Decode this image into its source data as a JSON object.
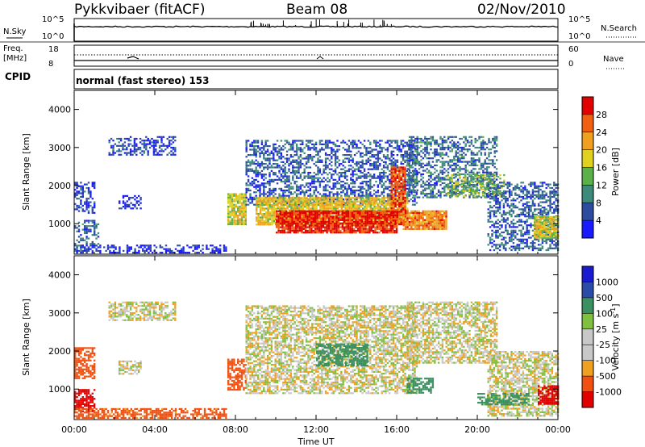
{
  "header": {
    "radar": "Pykkvibaer (fitACF)",
    "beam": "Beam 08",
    "date": "02/Nov/2010"
  },
  "colors": {
    "power_scale": [
      "#1a1aff",
      "#2d4ca0",
      "#3d8a7a",
      "#5bb04a",
      "#e0d020",
      "#f0a020",
      "#f06010",
      "#e00000"
    ],
    "velocity_scale": [
      "#e00000",
      "#f05010",
      "#f0a020",
      "#c8c8c8",
      "#c8c8c8",
      "#80c040",
      "#3a9060",
      "#2a4ca8",
      "#1a1ad0"
    ]
  },
  "noise_panel": {
    "left_label": "N.Sky",
    "left_ticks": [
      "10^5",
      "10^0"
    ],
    "right_ticks": [
      "10^5",
      "10^0"
    ],
    "right_label": "N.Search"
  },
  "freq_panel": {
    "left_label_1": "Freq.",
    "left_label_2": "[MHz]",
    "left_ticks": [
      "18",
      "8"
    ],
    "right_ticks": [
      "60",
      "0"
    ],
    "right_label": "Nave",
    "cpid_label": "CPID"
  },
  "mode": {
    "text": "normal (fast stereo) 153"
  },
  "chart_data": [
    {
      "type": "heatmap",
      "name": "power",
      "xlabel": "Time UT",
      "ylabel": "Slant Range [km]",
      "x_ticks": [
        "00:00",
        "04:00",
        "08:00",
        "12:00",
        "16:00",
        "20:00",
        "00:00"
      ],
      "xlim": [
        0,
        24
      ],
      "ylim": [
        200,
        4500
      ],
      "y_ticks": [
        1000,
        2000,
        3000,
        4000
      ],
      "colorbar_label": "Power [dB]",
      "colorbar_ticks": [
        "28",
        "24",
        "20",
        "16",
        "12",
        "8",
        "4"
      ],
      "colorbar_range": [
        0,
        32
      ],
      "regions": [
        {
          "t0": 0.0,
          "t1": 1.2,
          "r0": 300,
          "r1": 1100,
          "level": 0.25
        },
        {
          "t0": 0.0,
          "t1": 1.0,
          "r0": 1300,
          "r1": 2100,
          "level": 0.15
        },
        {
          "t0": 0.0,
          "t1": 7.5,
          "r0": 250,
          "r1": 450,
          "level": 0.1
        },
        {
          "t0": 2.2,
          "t1": 3.3,
          "r0": 1400,
          "r1": 1750,
          "level": 0.1
        },
        {
          "t0": 1.7,
          "t1": 5.0,
          "r0": 2800,
          "r1": 3300,
          "level": 0.15
        },
        {
          "t0": 7.6,
          "t1": 8.5,
          "r0": 1000,
          "r1": 1800,
          "level": 0.55
        },
        {
          "t0": 8.5,
          "t1": 17.0,
          "r0": 1500,
          "r1": 3200,
          "level": 0.2
        },
        {
          "t0": 9.0,
          "t1": 16.5,
          "r0": 1000,
          "r1": 1700,
          "level": 0.6
        },
        {
          "t0": 10.0,
          "t1": 16.0,
          "r0": 750,
          "r1": 1350,
          "level": 0.92
        },
        {
          "t0": 15.7,
          "t1": 16.4,
          "r0": 1000,
          "r1": 2500,
          "level": 0.85
        },
        {
          "t0": 16.3,
          "t1": 18.5,
          "r0": 850,
          "r1": 1350,
          "level": 0.75
        },
        {
          "t0": 16.5,
          "t1": 21.0,
          "r0": 1700,
          "r1": 3300,
          "level": 0.25
        },
        {
          "t0": 18.5,
          "t1": 21.3,
          "r0": 1700,
          "r1": 2300,
          "level": 0.45
        },
        {
          "t0": 20.5,
          "t1": 24.0,
          "r0": 300,
          "r1": 2100,
          "level": 0.22
        },
        {
          "t0": 22.8,
          "t1": 24.0,
          "r0": 600,
          "r1": 1200,
          "level": 0.55
        }
      ]
    },
    {
      "type": "heatmap",
      "name": "velocity",
      "xlabel": "Time UT",
      "ylabel": "Slant Range [km]",
      "x_ticks": [
        "00:00",
        "04:00",
        "08:00",
        "12:00",
        "16:00",
        "20:00",
        "00:00"
      ],
      "xlim": [
        0,
        24
      ],
      "ylim": [
        200,
        4500
      ],
      "y_ticks": [
        1000,
        2000,
        3000,
        4000
      ],
      "colorbar_label": "Velocity [m s^-1]",
      "colorbar_ticks": [
        "1000",
        "500",
        "100",
        "25",
        "-25",
        "-100",
        "-500",
        "-1000"
      ],
      "regions": [
        {
          "t0": 0.0,
          "t1": 1.0,
          "r0": 400,
          "r1": 1000,
          "vel": -800
        },
        {
          "t0": 0.0,
          "t1": 1.0,
          "r0": 1300,
          "r1": 2100,
          "vel": -200
        },
        {
          "t0": 1.7,
          "t1": 5.0,
          "r0": 2800,
          "r1": 3300,
          "vel": 0
        },
        {
          "t0": 0.0,
          "t1": 7.5,
          "r0": 250,
          "r1": 500,
          "vel": -150
        },
        {
          "t0": 2.2,
          "t1": 3.3,
          "r0": 1400,
          "r1": 1750,
          "vel": 0
        },
        {
          "t0": 7.6,
          "t1": 8.5,
          "r0": 1000,
          "r1": 1800,
          "vel": -400
        },
        {
          "t0": 8.5,
          "t1": 17.0,
          "r0": 900,
          "r1": 3200,
          "vel": 0
        },
        {
          "t0": 12.0,
          "t1": 14.5,
          "r0": 1600,
          "r1": 2200,
          "vel": 200
        },
        {
          "t0": 16.5,
          "t1": 17.8,
          "r0": 900,
          "r1": 1300,
          "vel": 300
        },
        {
          "t0": 16.5,
          "t1": 21.0,
          "r0": 1700,
          "r1": 3300,
          "vel": 0
        },
        {
          "t0": 20.5,
          "t1": 24.0,
          "r0": 300,
          "r1": 2000,
          "vel": 0
        },
        {
          "t0": 20.0,
          "t1": 22.5,
          "r0": 600,
          "r1": 900,
          "vel": 150
        },
        {
          "t0": 23.0,
          "t1": 24.0,
          "r0": 600,
          "r1": 1100,
          "vel": -700
        }
      ]
    }
  ]
}
